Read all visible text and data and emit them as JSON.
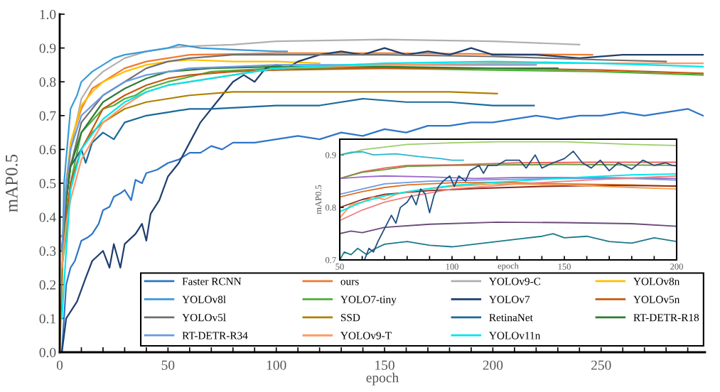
{
  "chart_data": [
    {
      "type": "line",
      "xlabel": "epoch",
      "ylabel": "mAP0.5",
      "xlim": [
        0,
        298
      ],
      "ylim": [
        0,
        1.0
      ],
      "xticks": [
        0,
        {
          "value": 10,
          "label": null
        },
        {
          "value": 20,
          "label": null
        },
        {
          "value": 30,
          "label": null
        },
        {
          "value": 40,
          "label": null
        },
        50,
        {
          "value": 60,
          "label": null
        },
        {
          "value": 70,
          "label": null
        },
        {
          "value": 80,
          "label": null
        },
        {
          "value": 90,
          "label": null
        },
        100,
        {
          "value": 110,
          "label": null
        },
        {
          "value": 120,
          "label": null
        },
        {
          "value": 130,
          "label": null
        },
        {
          "value": 140,
          "label": null
        },
        150,
        {
          "value": 160,
          "label": null
        },
        {
          "value": 170,
          "label": null
        },
        {
          "value": 180,
          "label": null
        },
        {
          "value": 190,
          "label": null
        },
        200,
        {
          "value": 210,
          "label": null
        },
        {
          "value": 220,
          "label": null
        },
        {
          "value": 230,
          "label": null
        },
        {
          "value": 240,
          "label": null
        },
        250,
        {
          "value": 260,
          "label": null
        },
        {
          "value": 270,
          "label": null
        },
        {
          "value": 280,
          "label": null
        },
        {
          "value": 290,
          "label": null
        }
      ],
      "yticks": [
        {
          "value": 0,
          "label": "0.0"
        },
        0.1,
        0.2,
        0.3,
        0.4,
        0.5,
        0.6,
        0.7,
        0.8,
        0.9,
        {
          "value": 1.0,
          "label": "1.0"
        }
      ],
      "grid": false,
      "legend": "bottom right",
      "marker": "none",
      "line_style": "solid",
      "series": [
        {
          "name": "Faster RCNN",
          "color": "#2e75c8",
          "x": [
            1,
            3,
            5,
            7,
            10,
            13,
            15,
            18,
            20,
            23,
            25,
            28,
            30,
            33,
            35,
            38,
            40,
            45,
            50,
            55,
            60,
            65,
            70,
            75,
            80,
            90,
            100,
            110,
            120,
            130,
            140,
            150,
            160,
            170,
            180,
            190,
            200,
            210,
            220,
            230,
            240,
            250,
            260,
            270,
            280,
            290,
            297
          ],
          "values": [
            0,
            0.2,
            0.25,
            0.27,
            0.33,
            0.34,
            0.35,
            0.38,
            0.42,
            0.43,
            0.46,
            0.47,
            0.48,
            0.45,
            0.51,
            0.5,
            0.53,
            0.54,
            0.56,
            0.57,
            0.59,
            0.59,
            0.61,
            0.6,
            0.62,
            0.62,
            0.63,
            0.64,
            0.63,
            0.65,
            0.64,
            0.66,
            0.65,
            0.67,
            0.67,
            0.68,
            0.68,
            0.69,
            0.7,
            0.69,
            0.7,
            0.7,
            0.71,
            0.7,
            0.71,
            0.72,
            0.7
          ]
        },
        {
          "name": "ours",
          "color": "#f07a30",
          "x": [
            0,
            2,
            5,
            7,
            10,
            15,
            20,
            25,
            30,
            40,
            50,
            60,
            80,
            100,
            150,
            200,
            246
          ],
          "values": [
            0.34,
            0.35,
            0.6,
            0.66,
            0.72,
            0.78,
            0.8,
            0.82,
            0.84,
            0.86,
            0.87,
            0.88,
            0.882,
            0.885,
            0.885,
            0.882,
            0.88
          ]
        },
        {
          "name": "YOLOv9-C",
          "color": "#b0b0b0",
          "x": [
            1,
            3,
            5,
            10,
            15,
            20,
            30,
            40,
            50,
            60,
            80,
            100,
            150,
            200,
            240
          ],
          "values": [
            0.3,
            0.5,
            0.6,
            0.75,
            0.8,
            0.83,
            0.87,
            0.89,
            0.9,
            0.905,
            0.91,
            0.92,
            0.925,
            0.92,
            0.91
          ]
        },
        {
          "name": "YOLOv8n",
          "color": "#ffc000",
          "x": [
            1,
            3,
            5,
            10,
            15,
            20,
            30,
            40,
            50,
            60,
            80,
            100,
            120
          ],
          "values": [
            0.3,
            0.5,
            0.62,
            0.73,
            0.77,
            0.8,
            0.83,
            0.85,
            0.86,
            0.865,
            0.86,
            0.86,
            0.855
          ]
        },
        {
          "name": "YOLOv8l",
          "color": "#3a9ad9",
          "x": [
            1,
            2,
            5,
            8,
            10,
            15,
            20,
            25,
            30,
            40,
            50,
            55,
            65,
            80,
            100,
            105
          ],
          "values": [
            0.2,
            0.5,
            0.72,
            0.76,
            0.8,
            0.83,
            0.85,
            0.87,
            0.88,
            0.89,
            0.9,
            0.91,
            0.9,
            0.895,
            0.89,
            0.89
          ]
        },
        {
          "name": "YOLO7-tiny",
          "color": "#4caf3a",
          "x": [
            1,
            3,
            5,
            10,
            20,
            25,
            30,
            35,
            40,
            50,
            70,
            100,
            150,
            200,
            250,
            297
          ],
          "values": [
            0.25,
            0.35,
            0.5,
            0.65,
            0.72,
            0.73,
            0.75,
            0.76,
            0.78,
            0.8,
            0.83,
            0.84,
            0.84,
            0.835,
            0.83,
            0.82
          ]
        },
        {
          "name": "YOLOv7",
          "color": "#1f3f6e",
          "x": [
            1,
            3,
            8,
            12,
            15,
            20,
            23,
            25,
            28,
            30,
            35,
            38,
            40,
            42,
            46,
            50,
            55,
            60,
            65,
            70,
            75,
            80,
            85,
            90,
            95,
            100,
            105,
            110,
            120,
            130,
            140,
            150,
            160,
            170,
            180,
            190,
            200,
            220,
            240,
            260,
            280,
            297
          ],
          "values": [
            0,
            0.1,
            0.15,
            0.22,
            0.27,
            0.3,
            0.25,
            0.32,
            0.25,
            0.32,
            0.35,
            0.38,
            0.33,
            0.41,
            0.45,
            0.52,
            0.56,
            0.62,
            0.68,
            0.72,
            0.76,
            0.8,
            0.82,
            0.8,
            0.84,
            0.85,
            0.84,
            0.86,
            0.88,
            0.89,
            0.88,
            0.9,
            0.88,
            0.89,
            0.88,
            0.9,
            0.88,
            0.88,
            0.87,
            0.88,
            0.88,
            0.88
          ]
        },
        {
          "name": "YOLOv5n",
          "color": "#c55a11",
          "x": [
            1,
            3,
            5,
            10,
            20,
            30,
            40,
            50,
            60,
            80,
            100,
            150,
            200,
            250,
            297
          ],
          "values": [
            0.3,
            0.4,
            0.5,
            0.6,
            0.72,
            0.76,
            0.79,
            0.81,
            0.82,
            0.83,
            0.835,
            0.84,
            0.84,
            0.835,
            0.825
          ]
        },
        {
          "name": "YOLOv5l",
          "color": "#707070",
          "x": [
            1,
            3,
            5,
            10,
            20,
            30,
            40,
            50,
            60,
            80,
            150,
            200,
            250,
            280
          ],
          "values": [
            0.3,
            0.45,
            0.55,
            0.68,
            0.76,
            0.8,
            0.84,
            0.86,
            0.87,
            0.88,
            0.88,
            0.875,
            0.865,
            0.86
          ]
        },
        {
          "name": "SSD",
          "color": "#b08000",
          "x": [
            0,
            2,
            5,
            10,
            15,
            20,
            30,
            40,
            50,
            60,
            80,
            100,
            150,
            180,
            202
          ],
          "values": [
            0,
            0.4,
            0.55,
            0.6,
            0.65,
            0.68,
            0.72,
            0.74,
            0.75,
            0.76,
            0.77,
            0.77,
            0.77,
            0.77,
            0.765
          ]
        },
        {
          "name": "RetinaNet",
          "color": "#1a6a9a",
          "x": [
            1,
            3,
            5,
            8,
            10,
            12,
            15,
            20,
            25,
            30,
            40,
            50,
            60,
            70,
            100,
            120,
            140,
            160,
            180,
            200,
            219
          ],
          "values": [
            0.3,
            0.45,
            0.55,
            0.58,
            0.6,
            0.56,
            0.62,
            0.65,
            0.63,
            0.68,
            0.7,
            0.71,
            0.72,
            0.72,
            0.73,
            0.73,
            0.75,
            0.74,
            0.74,
            0.73,
            0.73
          ]
        },
        {
          "name": "RT-DETR-R18",
          "color": "#2e7d32",
          "x": [
            1,
            3,
            5,
            10,
            20,
            30,
            40,
            50,
            70,
            100,
            150,
            200,
            230
          ],
          "values": [
            0.3,
            0.45,
            0.55,
            0.65,
            0.74,
            0.78,
            0.81,
            0.83,
            0.84,
            0.845,
            0.845,
            0.84,
            0.84
          ]
        },
        {
          "name": "RT-DETR-R34",
          "color": "#6a9ae0",
          "x": [
            1,
            3,
            5,
            10,
            20,
            30,
            40,
            50,
            60,
            80,
            100,
            150,
            200,
            220
          ],
          "values": [
            0.3,
            0.5,
            0.6,
            0.7,
            0.76,
            0.8,
            0.82,
            0.83,
            0.84,
            0.845,
            0.85,
            0.85,
            0.85,
            0.85
          ]
        },
        {
          "name": "YOLOv9-T",
          "color": "#ff9966",
          "x": [
            1,
            3,
            5,
            10,
            20,
            30,
            40,
            50,
            60,
            80,
            100,
            150,
            200,
            250,
            297
          ],
          "values": [
            0.25,
            0.38,
            0.45,
            0.57,
            0.68,
            0.73,
            0.77,
            0.79,
            0.8,
            0.82,
            0.84,
            0.85,
            0.855,
            0.855,
            0.855
          ]
        },
        {
          "name": "YOLOv11n",
          "color": "#00e5ee",
          "x": [
            1,
            3,
            5,
            10,
            20,
            30,
            40,
            50,
            60,
            80,
            100,
            150,
            200,
            250,
            297
          ],
          "values": [
            0.1,
            0.3,
            0.48,
            0.6,
            0.69,
            0.74,
            0.77,
            0.79,
            0.8,
            0.82,
            0.84,
            0.855,
            0.86,
            0.855,
            0.845
          ]
        }
      ]
    },
    {
      "type": "line",
      "xlabel": "epoch",
      "ylabel": "mAP0.5",
      "xlim": [
        50,
        200
      ],
      "ylim": [
        0.7,
        0.93
      ],
      "xticks": [
        50,
        {
          "value": 60,
          "label": null
        },
        {
          "value": 70,
          "label": null
        },
        {
          "value": 80,
          "label": null
        },
        {
          "value": 90,
          "label": null
        },
        100,
        {
          "value": 110,
          "label": null
        },
        {
          "value": 120,
          "label": null
        },
        {
          "value": 130,
          "label": null
        },
        {
          "value": 140,
          "label": null
        },
        150,
        {
          "value": 160,
          "label": null
        },
        {
          "value": 170,
          "label": null
        },
        {
          "value": 180,
          "label": null
        },
        {
          "value": 190,
          "label": null
        },
        200
      ],
      "yticks": [
        0.7,
        0.8,
        0.9
      ],
      "grid": false,
      "legend": false,
      "marker": "none",
      "line_style": "solid",
      "series": [
        {
          "color": "#9bcf6a",
          "x": [
            50,
            55,
            60,
            70,
            80,
            100,
            120,
            150,
            180,
            200
          ],
          "values": [
            0.9,
            0.903,
            0.91,
            0.915,
            0.92,
            0.923,
            0.925,
            0.925,
            0.92,
            0.918
          ]
        },
        {
          "color": "#2bb5d0",
          "x": [
            50,
            55,
            60,
            65,
            75,
            85,
            95,
            100,
            105
          ],
          "values": [
            0.9,
            0.905,
            0.906,
            0.9,
            0.902,
            0.897,
            0.893,
            0.89,
            0.89
          ]
        },
        {
          "color": "#f06060",
          "x": [
            50,
            60,
            70,
            80,
            100,
            130,
            160,
            200
          ],
          "values": [
            0.855,
            0.868,
            0.875,
            0.88,
            0.881,
            0.885,
            0.886,
            0.886
          ]
        },
        {
          "color": "#6b9a3a",
          "x": [
            50,
            60,
            70,
            80,
            100,
            150,
            200
          ],
          "values": [
            0.855,
            0.867,
            0.872,
            0.878,
            0.88,
            0.882,
            0.88
          ]
        },
        {
          "color": "#9a6ac8",
          "x": [
            50,
            60,
            70,
            90,
            110,
            130,
            160,
            200
          ],
          "values": [
            0.855,
            0.858,
            0.86,
            0.858,
            0.855,
            0.857,
            0.857,
            0.855
          ]
        },
        {
          "color": "#6a9ae0",
          "x": [
            50,
            60,
            70,
            90,
            120,
            150,
            180,
            200
          ],
          "values": [
            0.825,
            0.835,
            0.845,
            0.85,
            0.853,
            0.855,
            0.855,
            0.852
          ]
        },
        {
          "color": "#e07020",
          "x": [
            50,
            60,
            70,
            80,
            100,
            120,
            150,
            180,
            200
          ],
          "values": [
            0.82,
            0.83,
            0.838,
            0.843,
            0.847,
            0.848,
            0.845,
            0.843,
            0.84
          ]
        },
        {
          "color": "#8b2a1a",
          "x": [
            50,
            60,
            70,
            90,
            110,
            140,
            170,
            200
          ],
          "values": [
            0.8,
            0.815,
            0.825,
            0.832,
            0.836,
            0.84,
            0.842,
            0.841
          ]
        },
        {
          "color": "#f08080",
          "x": [
            50,
            60,
            70,
            80,
            100,
            130,
            160,
            200
          ],
          "values": [
            0.775,
            0.795,
            0.81,
            0.82,
            0.835,
            0.845,
            0.852,
            0.86
          ]
        },
        {
          "color": "#f0a050",
          "x": [
            50,
            55,
            60,
            65,
            70,
            75,
            85,
            100,
            120,
            150,
            180,
            200
          ],
          "values": [
            0.78,
            0.805,
            0.81,
            0.82,
            0.815,
            0.825,
            0.833,
            0.84,
            0.845,
            0.843,
            0.838,
            0.835
          ]
        },
        {
          "color": "#00e5ee",
          "x": [
            50,
            60,
            70,
            80,
            90,
            100,
            120,
            150,
            180,
            200
          ],
          "values": [
            0.792,
            0.81,
            0.822,
            0.83,
            0.836,
            0.842,
            0.848,
            0.856,
            0.862,
            0.864
          ]
        },
        {
          "color": "#6a4a7a",
          "x": [
            50,
            55,
            60,
            70,
            90,
            120,
            150,
            180,
            200
          ],
          "values": [
            0.75,
            0.755,
            0.752,
            0.762,
            0.768,
            0.772,
            0.771,
            0.769,
            0.764
          ]
        },
        {
          "color": "#1a7a8a",
          "x": [
            50,
            52,
            55,
            58,
            62,
            65,
            70,
            80,
            90,
            100,
            110,
            120,
            130,
            140,
            145,
            150,
            160,
            170,
            180,
            190,
            200
          ],
          "values": [
            0.7,
            0.715,
            0.71,
            0.722,
            0.71,
            0.72,
            0.73,
            0.735,
            0.728,
            0.725,
            0.73,
            0.735,
            0.74,
            0.745,
            0.75,
            0.742,
            0.745,
            0.735,
            0.732,
            0.742,
            0.735
          ]
        },
        {
          "color": "#1f4f7f",
          "x": [
            61,
            63,
            65,
            67,
            70,
            73,
            75,
            77,
            80,
            82,
            84,
            86,
            88,
            90,
            92,
            94,
            96,
            99,
            101,
            103,
            106,
            108,
            112,
            114,
            116,
            120,
            124,
            130,
            133,
            137,
            140,
            145,
            150,
            154,
            158,
            162,
            166,
            170,
            174,
            180,
            185,
            190,
            195,
            198,
            200
          ],
          "values": [
            0.7,
            0.722,
            0.715,
            0.735,
            0.76,
            0.785,
            0.77,
            0.8,
            0.81,
            0.823,
            0.805,
            0.835,
            0.826,
            0.79,
            0.823,
            0.84,
            0.85,
            0.86,
            0.84,
            0.86,
            0.85,
            0.87,
            0.88,
            0.865,
            0.88,
            0.88,
            0.89,
            0.89,
            0.875,
            0.9,
            0.875,
            0.885,
            0.893,
            0.907,
            0.885,
            0.875,
            0.89,
            0.87,
            0.885,
            0.873,
            0.89,
            0.88,
            0.885,
            0.88,
            0.879
          ]
        }
      ]
    }
  ]
}
